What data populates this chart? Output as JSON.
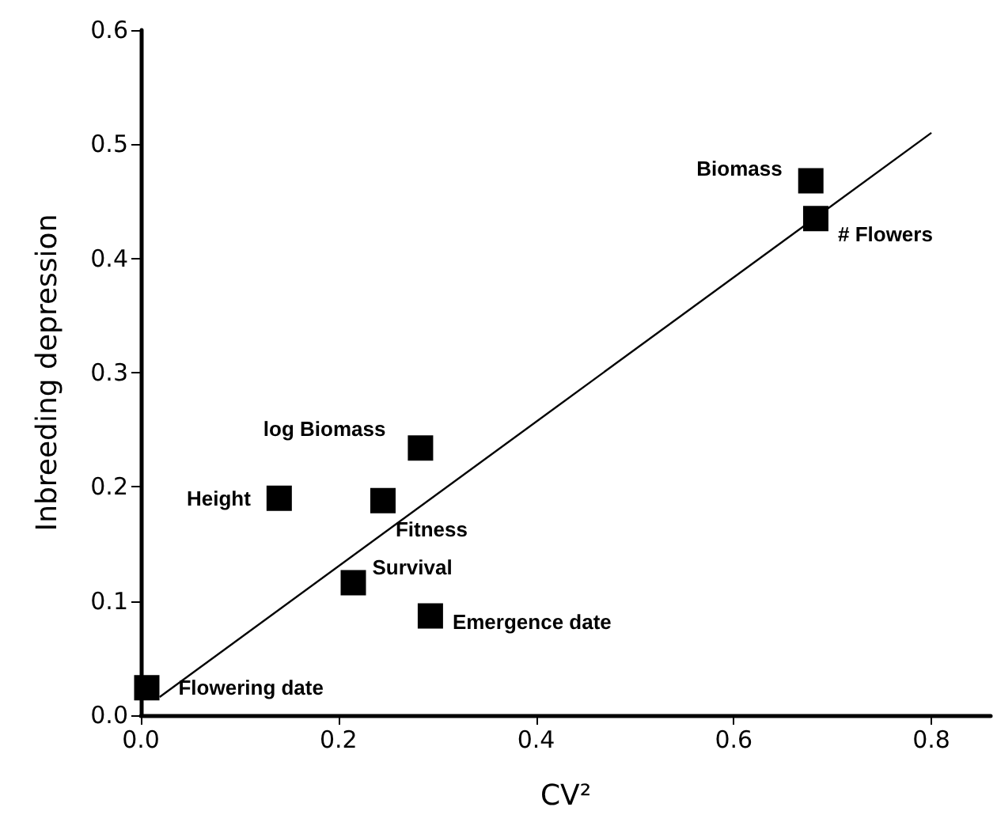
{
  "chart_data": {
    "type": "scatter",
    "xlabel": "CV²",
    "ylabel": "Inbreeding depression",
    "x": [
      0.006,
      0.14,
      0.283,
      0.245,
      0.215,
      0.293,
      0.678,
      0.683
    ],
    "series": [
      {
        "color": "#000000",
        "values": [
          0.024,
          0.19,
          0.234,
          0.188,
          0.116,
          0.087,
          0.468,
          0.435
        ]
      },
      {
        "type": "line",
        "color": "#000000",
        "marker": "none",
        "x": [
          0.019,
          0.8
        ],
        "values": [
          0.016,
          0.51
        ]
      }
    ],
    "annotations": [
      {
        "text": "Flowering date",
        "x": 0.006,
        "y": 0.024
      },
      {
        "text": "Height",
        "x": 0.14,
        "y": 0.19
      },
      {
        "text": "log Biomass",
        "x": 0.283,
        "y": 0.234
      },
      {
        "text": "Fitness",
        "x": 0.245,
        "y": 0.188
      },
      {
        "text": "Survival",
        "x": 0.215,
        "y": 0.116
      },
      {
        "text": "Emergence date",
        "x": 0.293,
        "y": 0.087
      },
      {
        "text": "Biomass",
        "x": 0.678,
        "y": 0.468
      },
      {
        "text": "# Flowers",
        "x": 0.683,
        "y": 0.435
      }
    ],
    "xlim": [
      0,
      0.86
    ],
    "ylim": [
      0,
      0.6
    ],
    "xticks": [
      {
        "value": 0,
        "label": "0.0"
      },
      0.2,
      0.4,
      0.6,
      0.8
    ],
    "yticks": [
      {
        "value": 0,
        "label": "0.0"
      },
      0.1,
      0.2,
      0.3,
      0.4,
      0.5,
      0.6
    ],
    "marker": "square",
    "grid": false
  }
}
